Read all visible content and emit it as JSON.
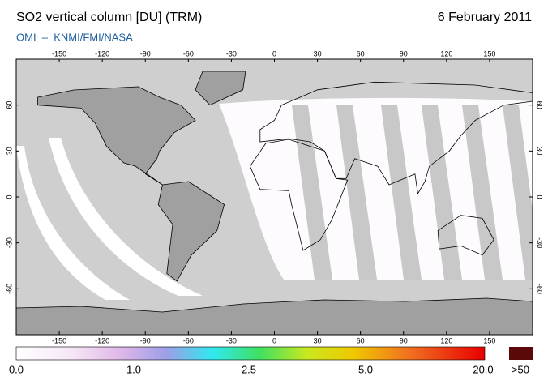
{
  "header": {
    "title": "SO2 vertical column [DU] (TRM)",
    "date": "6 February 2011",
    "subtitle": "OMI  –  KNMI/FMI/NASA"
  },
  "map": {
    "lon_ticks": [
      -150,
      -120,
      -90,
      -60,
      -30,
      0,
      30,
      60,
      90,
      120,
      150
    ],
    "lat_ticks": [
      60,
      30,
      0,
      -30,
      -60
    ],
    "lon_range": [
      -180,
      180
    ],
    "lat_range": [
      90,
      -90
    ]
  },
  "colorbar": {
    "labels": [
      "0.0",
      "1.0",
      "2.5",
      "5.0",
      "20.0"
    ],
    "overflow_label": ">50"
  }
}
